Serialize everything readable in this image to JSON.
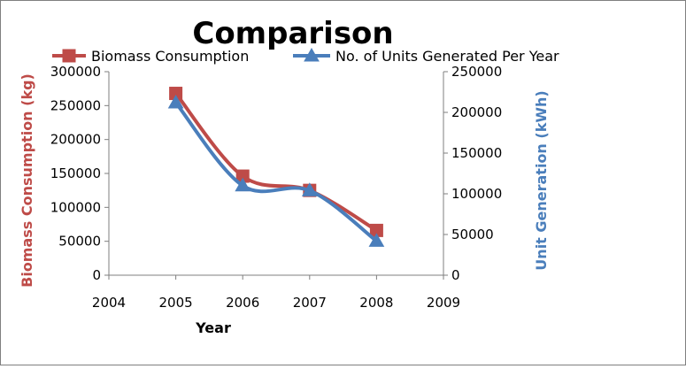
{
  "chart_data": {
    "type": "line",
    "title": "Comparison",
    "xlabel": "Year",
    "ylabel": "Biomass Consumption (kg)",
    "y2label": "Unit Generation (kWh)",
    "x": [
      2005,
      2006,
      2007,
      2008
    ],
    "xlim": [
      2004,
      2009
    ],
    "xticks": [
      "2004",
      "2005",
      "2006",
      "2007",
      "2008",
      "2009"
    ],
    "ylim": [
      0,
      300000
    ],
    "yticks": [
      "0",
      "50000",
      "100000",
      "150000",
      "200000",
      "250000",
      "300000"
    ],
    "y2lim": [
      0,
      250000
    ],
    "y2ticks": [
      "0",
      "50000",
      "100000",
      "150000",
      "200000",
      "250000"
    ],
    "grid": false,
    "legend_position": "top",
    "series": [
      {
        "name": "Biomass Consumption",
        "axis": "left",
        "marker": "square",
        "color": "#BE4B48",
        "values": [
          268000,
          146000,
          125000,
          66000
        ]
      },
      {
        "name": "No. of Units Generated Per Year",
        "axis": "right",
        "marker": "triangle",
        "color": "#4A7EBB",
        "values": [
          212000,
          110000,
          104000,
          42000
        ]
      }
    ],
    "colors": {
      "ylabel": "#BE4B48",
      "y2label": "#4A7EBB",
      "axis": "#7f7f7f",
      "text": "#000000"
    }
  }
}
